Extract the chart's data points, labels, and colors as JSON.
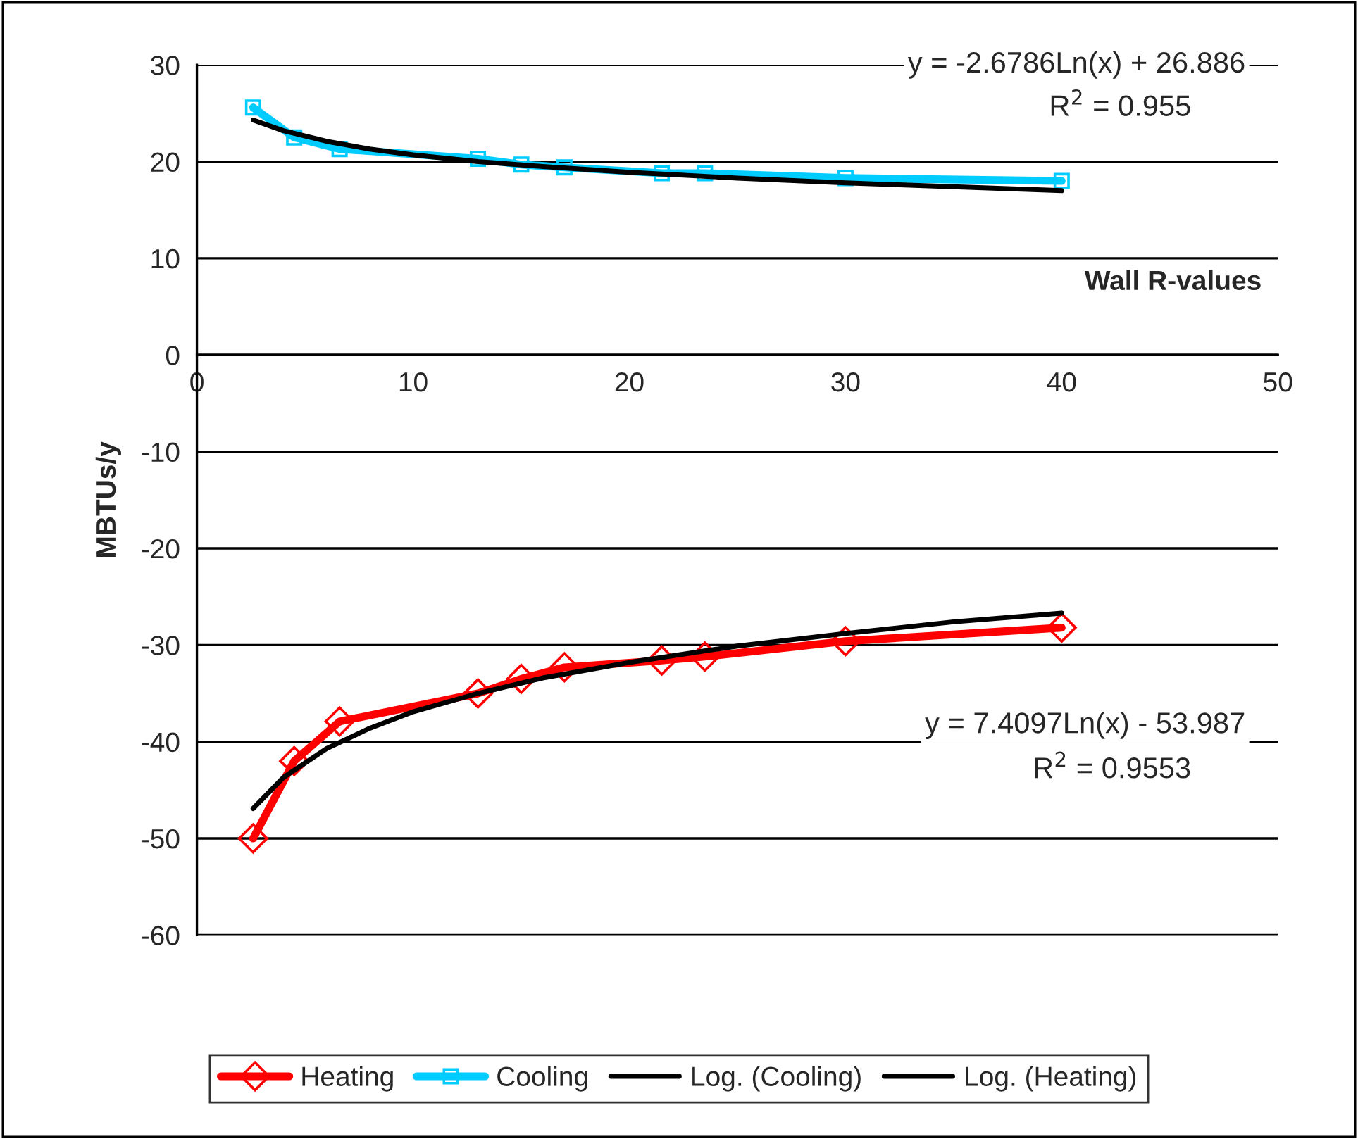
{
  "chart_data": {
    "type": "line",
    "xlabel": "Wall R-values",
    "ylabel": "MBTUs/y",
    "xlim": [
      0,
      50
    ],
    "xticks": [
      0,
      10,
      20,
      30,
      40,
      50
    ],
    "ylim": [
      -60,
      30
    ],
    "yticks": [
      -60,
      -50,
      -40,
      -30,
      -20,
      -10,
      0,
      10,
      20,
      30
    ],
    "grid": "y",
    "legend": "bottom",
    "series": [
      {
        "name": "Heating",
        "color": "#ff0000",
        "marker": "diamond",
        "x": [
          2.6,
          4.5,
          6.6,
          13,
          15,
          17,
          21.5,
          23.5,
          30,
          40
        ],
        "values": [
          -50.0,
          -42.0,
          -37.9,
          -35.0,
          -33.5,
          -32.3,
          -31.6,
          -31.2,
          -29.6,
          -28.2
        ]
      },
      {
        "name": "Cooling",
        "color": "#00ccff",
        "marker": "square",
        "x": [
          2.6,
          4.5,
          6.6,
          13,
          15,
          17,
          21.5,
          23.5,
          30,
          40
        ],
        "values": [
          25.6,
          22.5,
          21.3,
          20.3,
          19.7,
          19.4,
          18.8,
          18.8,
          18.3,
          18.0
        ]
      },
      {
        "name": "Log. (Cooling)",
        "color": "#000000",
        "marker": "none",
        "x": [
          2.6,
          4,
          6,
          8,
          10,
          13,
          16,
          20,
          25,
          30,
          35,
          40
        ],
        "values": [
          24.3,
          23.2,
          22.1,
          21.3,
          20.7,
          20.0,
          19.5,
          18.9,
          18.3,
          17.8,
          17.4,
          17.0
        ]
      },
      {
        "name": "Log. (Heating)",
        "color": "#000000",
        "marker": "none",
        "x": [
          2.6,
          4,
          6,
          8,
          10,
          13,
          16,
          20,
          25,
          30,
          35,
          40
        ],
        "values": [
          -46.9,
          -43.7,
          -40.7,
          -38.6,
          -36.9,
          -35.0,
          -33.4,
          -31.8,
          -30.1,
          -28.8,
          -27.6,
          -26.7
        ]
      }
    ],
    "annotations": [
      "y = -2.6786Ln(x) + 26.886",
      "R$^{2}$ = 0.955",
      "y = 7.4097Ln(x) - 53.987",
      "R$^{2}$ = 0.9553"
    ]
  }
}
